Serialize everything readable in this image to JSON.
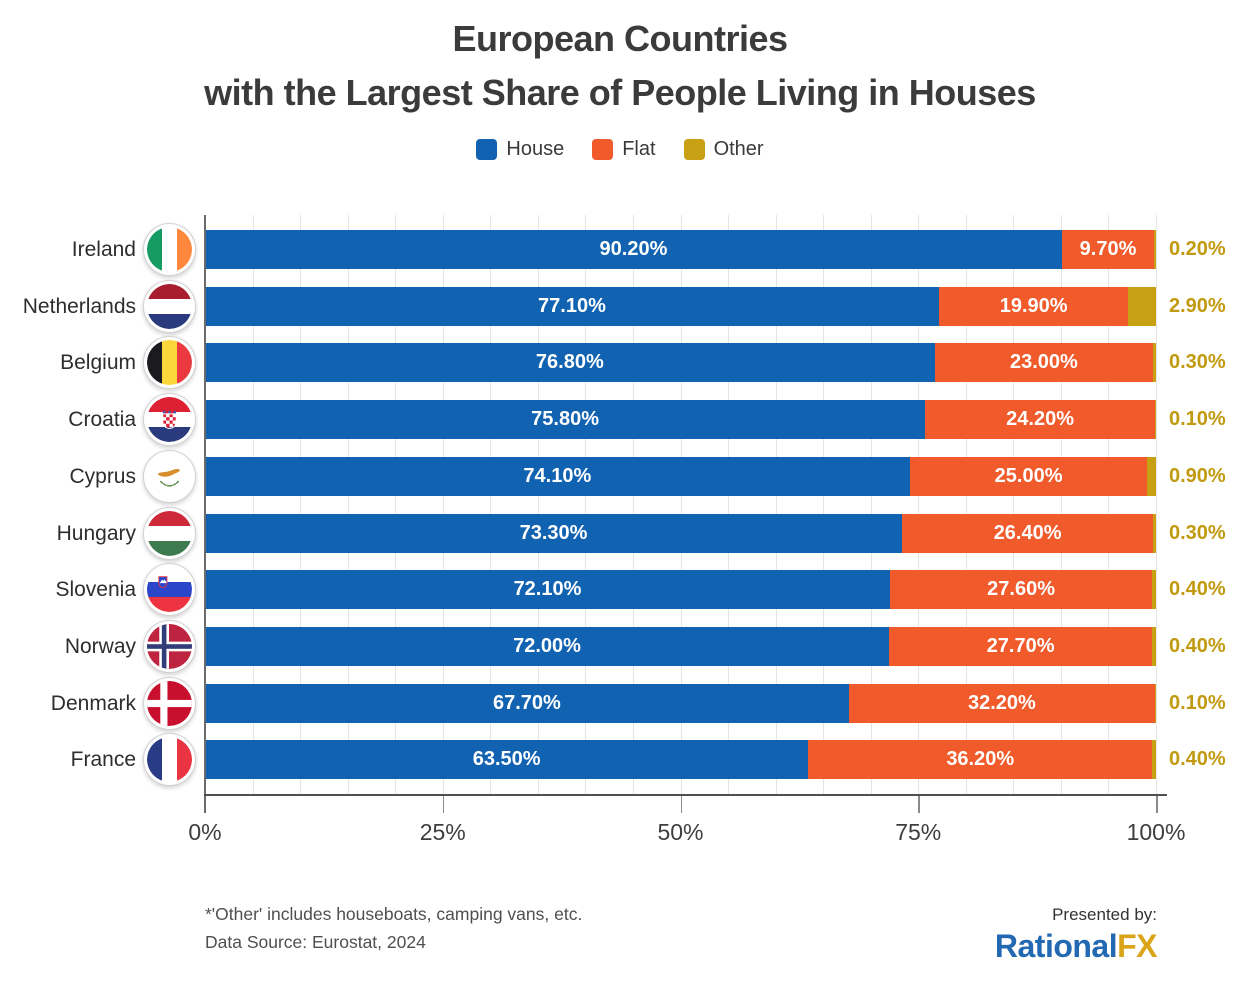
{
  "title": {
    "line1": "European Countries",
    "line2": "with the Largest Share of People Living in Houses"
  },
  "legend": {
    "items": [
      {
        "label": "House",
        "color": "#1162B1"
      },
      {
        "label": "Flat",
        "color": "#F15A2A"
      },
      {
        "label": "Other",
        "color": "#C7A013"
      }
    ]
  },
  "chart_data": {
    "type": "bar",
    "orientation": "horizontal",
    "stacked": true,
    "title": "European Countries with the Largest Share of People Living in Houses",
    "categories": [
      "Ireland",
      "Netherlands",
      "Belgium",
      "Croatia",
      "Cyprus",
      "Hungary",
      "Slovenia",
      "Norway",
      "Denmark",
      "France"
    ],
    "flag_icons": [
      "ireland-flag",
      "netherlands-flag",
      "belgium-flag",
      "croatia-flag",
      "cyprus-flag",
      "hungary-flag",
      "slovenia-flag",
      "norway-flag",
      "denmark-flag",
      "france-flag"
    ],
    "series": [
      {
        "name": "House",
        "color": "#1162B1",
        "values": [
          90.2,
          77.1,
          76.8,
          75.8,
          74.1,
          73.3,
          72.1,
          72.0,
          67.7,
          63.5
        ],
        "display_labels": [
          "90.20%",
          "77.10%",
          "76.80%",
          "75.80%",
          "74.10%",
          "73.30%",
          "72.10%",
          "72.00%",
          "67.70%",
          "63.50%"
        ]
      },
      {
        "name": "Flat",
        "color": "#F15A2A",
        "values": [
          9.7,
          19.9,
          23.0,
          24.2,
          25.0,
          26.4,
          27.6,
          27.7,
          32.2,
          36.2
        ],
        "display_labels": [
          "9.70%",
          "19.90%",
          "23.00%",
          "24.20%",
          "25.00%",
          "26.40%",
          "27.60%",
          "27.70%",
          "32.20%",
          "36.20%"
        ]
      },
      {
        "name": "Other",
        "color": "#C7A013",
        "values": [
          0.2,
          2.9,
          0.3,
          0.1,
          0.9,
          0.3,
          0.4,
          0.4,
          0.1,
          0.4
        ],
        "display_labels": [
          "0.20%",
          "2.90%",
          "0.30%",
          "0.10%",
          "0.90%",
          "0.30%",
          "0.40%",
          "0.40%",
          "0.10%",
          "0.40%"
        ]
      }
    ],
    "x_ticks": [
      {
        "label": "0%",
        "value": 0
      },
      {
        "label": "25%",
        "value": 25
      },
      {
        "label": "50%",
        "value": 50
      },
      {
        "label": "75%",
        "value": 75
      },
      {
        "label": "100%",
        "value": 100
      }
    ],
    "xlim": [
      0,
      100
    ],
    "grid": {
      "minor_step_pct": 5,
      "color": "#E4E4E4",
      "legend_position": "top"
    }
  },
  "footnote": {
    "line1": "*'Other' includes houseboats, camping vans, etc.",
    "line2": "Data Source: Eurostat, 2024"
  },
  "branding": {
    "presented_by": "Presented by:",
    "brand_blue": "Rational",
    "brand_gold": "FX",
    "blue_color": "#2268B2",
    "gold_color": "#D9A417"
  },
  "colors": {
    "other_label_text": "#C19A10",
    "title_text": "#3B3B3D"
  }
}
